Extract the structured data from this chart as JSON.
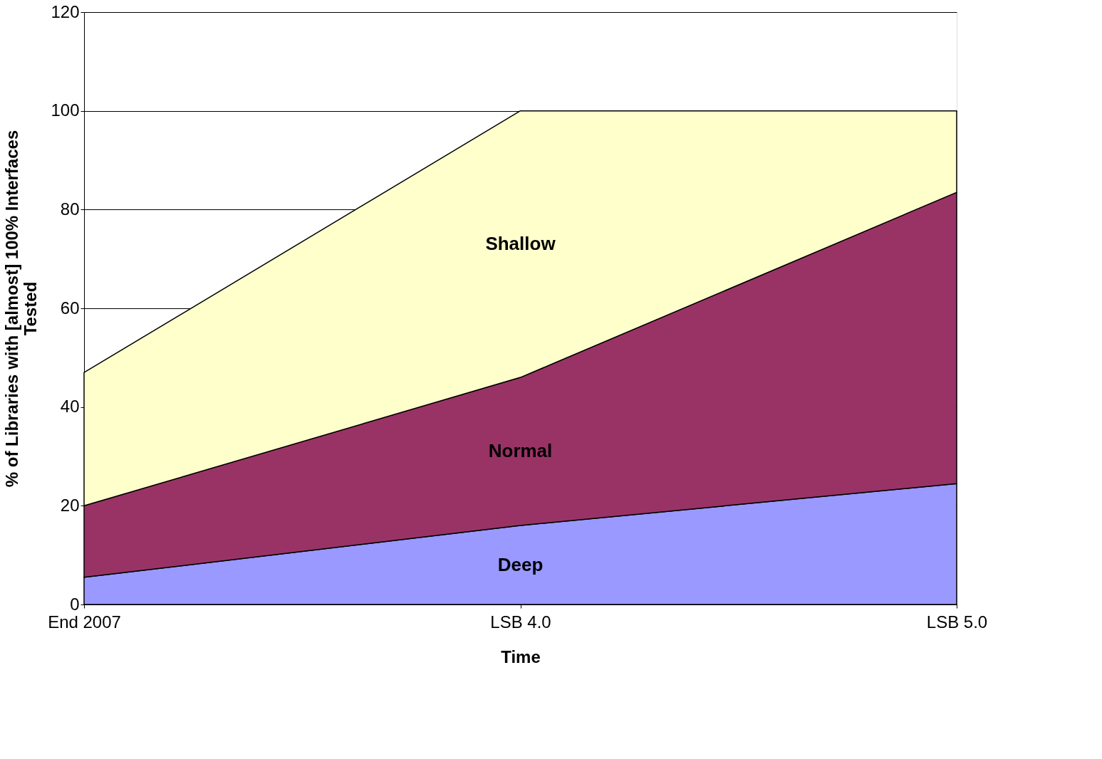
{
  "chart_data": {
    "type": "area",
    "stacked": true,
    "xlabel": "Time",
    "ylabel": "% of Libraries with [almost] 100% Interfaces\nTested",
    "categories": [
      "End 2007",
      "LSB 4.0",
      "LSB 5.0"
    ],
    "series": [
      {
        "name": "Deep",
        "color": "#9999ff",
        "values": [
          5.5,
          16,
          24.5
        ]
      },
      {
        "name": "Normal",
        "color": "#993366",
        "values": [
          14.5,
          30,
          59
        ]
      },
      {
        "name": "Shallow",
        "color": "#ffffcc",
        "values": [
          27,
          54,
          16.5
        ]
      }
    ],
    "ylim": [
      0,
      120
    ],
    "yticks": [
      0,
      20,
      40,
      60,
      80,
      100,
      120
    ],
    "grid": "y",
    "legend": false
  }
}
